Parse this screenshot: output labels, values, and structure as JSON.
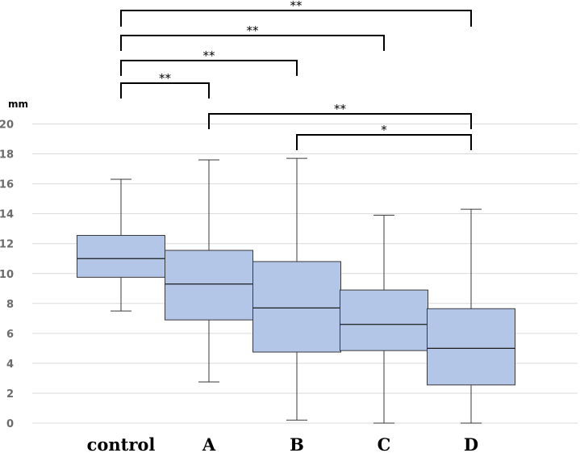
{
  "chart_data": {
    "type": "box",
    "ylabel": "mm",
    "ylim": [
      0,
      20
    ],
    "yticks": [
      0,
      2,
      4,
      6,
      8,
      10,
      12,
      14,
      16,
      18,
      20
    ],
    "grid": true,
    "box_color": "#b4c6e7",
    "categories": [
      "control",
      "A",
      "B",
      "C",
      "D"
    ],
    "boxes": [
      {
        "category": "control",
        "min": 7.5,
        "q1": 9.75,
        "median": 11.0,
        "q3": 12.55,
        "max": 16.3
      },
      {
        "category": "A",
        "min": 2.75,
        "q1": 6.9,
        "median": 9.3,
        "q3": 11.55,
        "max": 17.6
      },
      {
        "category": "B",
        "min": 0.2,
        "q1": 4.75,
        "median": 7.7,
        "q3": 10.8,
        "max": 17.7
      },
      {
        "category": "C",
        "min": 0.0,
        "q1": 4.85,
        "median": 6.6,
        "q3": 8.9,
        "max": 13.9
      },
      {
        "category": "D",
        "min": 0.0,
        "q1": 2.55,
        "median": 5.0,
        "q3": 7.65,
        "max": 14.3
      }
    ],
    "significance": [
      {
        "from": "control",
        "to": "D",
        "label": "**"
      },
      {
        "from": "control",
        "to": "C",
        "label": "**"
      },
      {
        "from": "control",
        "to": "B",
        "label": "**"
      },
      {
        "from": "control",
        "to": "A",
        "label": "**"
      },
      {
        "from": "A",
        "to": "D",
        "label": "**"
      },
      {
        "from": "B",
        "to": "D",
        "label": "*"
      }
    ]
  }
}
